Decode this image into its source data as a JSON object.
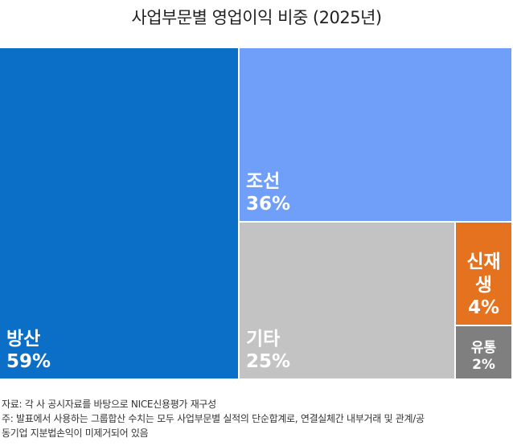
{
  "chart_data": {
    "type": "treemap",
    "title": "사업부문별 영업이익 비중 (2025년)",
    "unit": "%",
    "segments": [
      {
        "name": "방산",
        "value": 59,
        "value_label": "59%",
        "color": "#0b6ec7"
      },
      {
        "name": "조선",
        "value": 36,
        "value_label": "36%",
        "color": "#6f9ff8"
      },
      {
        "name": "기타",
        "value": 25,
        "value_label": "25%",
        "color": "#c3c3c3"
      },
      {
        "name": "신재생",
        "value": 4,
        "value_label": "4%",
        "color": "#e4721f"
      },
      {
        "name": "유통",
        "value": 2,
        "value_label": "2%",
        "color": "#7f7f7f"
      }
    ]
  },
  "notes": {
    "source": "자료: 각 사 공시자료를 바탕으로 NICE신용평가 재구성",
    "note_line1": "주: 발표에서 사용하는 그룹합산 수치는 모두 사업부문별 실적의 단순합계로, 연결실체간 내부거래 및 관계/공",
    "note_line2": "동기업 지분법손익이 미제거되어 있음"
  }
}
